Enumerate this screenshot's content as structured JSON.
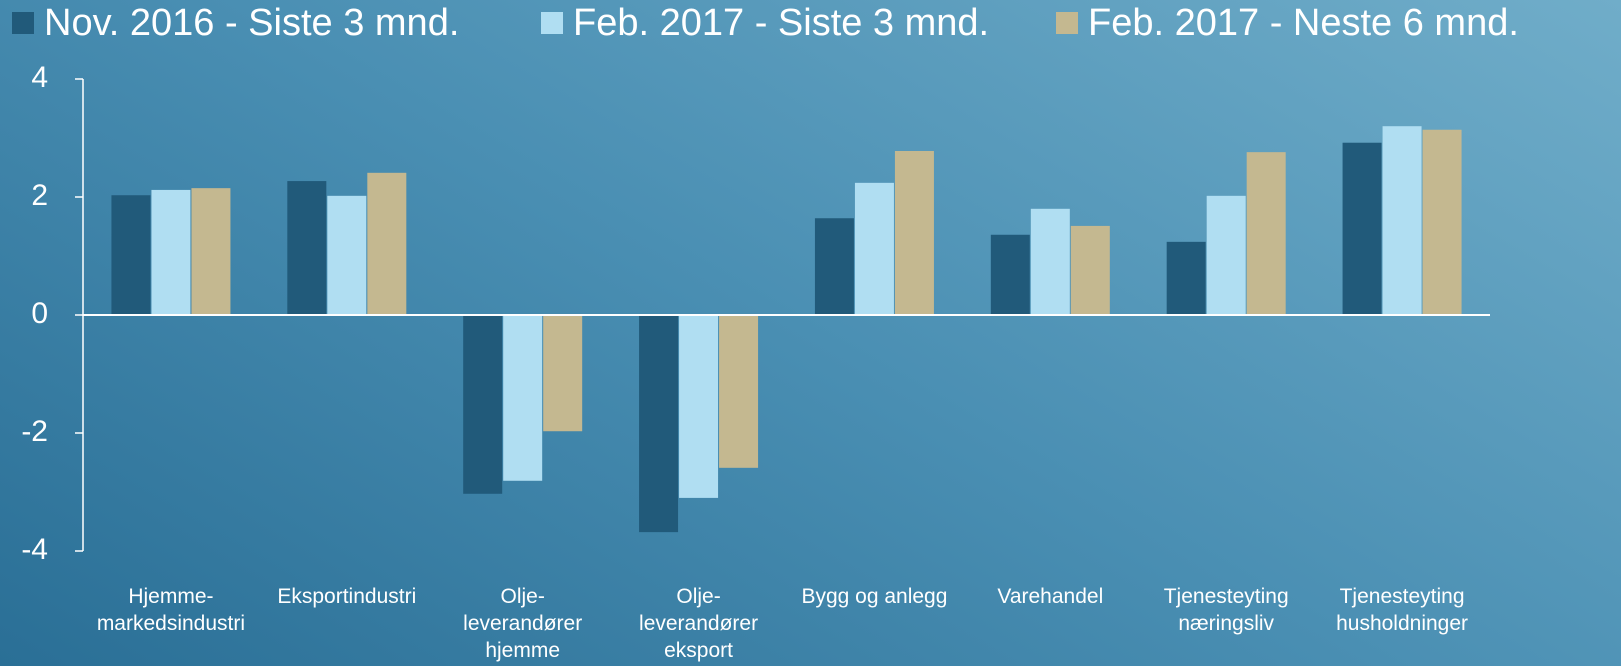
{
  "chart_data": {
    "type": "bar",
    "categories": [
      "Hjemme-\nmarkedsindustri",
      "Eksportindustri",
      "Olje-\nleverandører\nhjemme",
      "Olje-\nleverandører\neksport",
      "Bygg og anlegg",
      "Varehandel",
      "Tjenesteyting\nnæringsliv",
      "Tjenesteyting\nhusholdninger"
    ],
    "series": [
      {
        "name": "Nov. 2016 - Siste 3 mnd.",
        "color": "#215a7a",
        "values": [
          2.03,
          2.27,
          -3.03,
          -3.68,
          1.64,
          1.36,
          1.24,
          2.92
        ]
      },
      {
        "name": "Feb. 2017 - Siste 3 mnd.",
        "color": "#b0def2",
        "values": [
          2.12,
          2.02,
          -2.81,
          -3.1,
          2.24,
          1.8,
          2.02,
          3.2
        ]
      },
      {
        "name": "Feb. 2017 - Neste 6 mnd.",
        "color": "#c4b890",
        "values": [
          2.15,
          2.41,
          -1.97,
          -2.59,
          2.78,
          1.51,
          2.76,
          3.14
        ]
      }
    ],
    "ylim": [
      -4,
      4
    ],
    "yticks": [
      -4,
      -2,
      0,
      2,
      4
    ],
    "grid": false,
    "legend": "top"
  }
}
